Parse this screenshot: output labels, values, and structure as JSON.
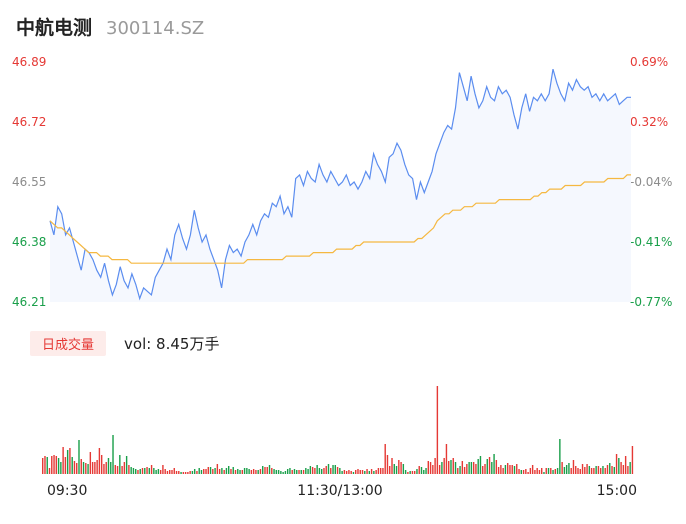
{
  "header": {
    "name": "中航电测",
    "code": "300114.SZ"
  },
  "volume": {
    "badge": "日成交量",
    "label": "vol: 8.45万手"
  },
  "colors": {
    "up": "#e53935",
    "down": "#1a9f4a",
    "flat": "#8c8c8c",
    "price_line": "#5b8def",
    "avg_line": "#f5b841"
  },
  "chart_data": [
    {
      "type": "line",
      "title": "",
      "ylim": [
        46.21,
        46.89
      ],
      "y_ticks_left": [
        "46.89",
        "46.72",
        "46.55",
        "46.38",
        "46.21"
      ],
      "y_ticks_right": [
        "0.69%",
        "0.32%",
        "-0.04%",
        "-0.41%",
        "-0.77%"
      ],
      "x_ticks": [
        "09:30",
        "11:30/13:00",
        "15:00"
      ],
      "series": [
        {
          "points": [
            46.44,
            46.4,
            46.48,
            46.46,
            46.4,
            46.42,
            46.38,
            46.34,
            46.3,
            46.36,
            46.35,
            46.33,
            46.3,
            46.28,
            46.32,
            46.27,
            46.23,
            46.26,
            46.31,
            46.27,
            46.25,
            46.29,
            46.26,
            46.22,
            46.25,
            46.24,
            46.23,
            46.28,
            46.3,
            46.32,
            46.36,
            46.33,
            46.4,
            46.43,
            46.39,
            46.36,
            46.4,
            46.47,
            46.42,
            46.38,
            46.4,
            46.36,
            46.33,
            46.3,
            46.25,
            46.33,
            46.37,
            46.35,
            46.36,
            46.34,
            46.38,
            46.4,
            46.43,
            46.4,
            46.44,
            46.46,
            46.45,
            46.49,
            46.48,
            46.51,
            46.46,
            46.48,
            46.45,
            46.56,
            46.57,
            46.54,
            46.58,
            46.56,
            46.55,
            46.6,
            46.57,
            46.55,
            46.58,
            46.56,
            46.54,
            46.55,
            46.57,
            46.54,
            46.55,
            46.53,
            46.55,
            46.58,
            46.56,
            46.63,
            46.6,
            46.58,
            46.55,
            46.62,
            46.63,
            46.66,
            46.64,
            46.6,
            46.57,
            46.56,
            46.5,
            46.55,
            46.52,
            46.55,
            46.58,
            46.63,
            46.66,
            46.69,
            46.71,
            46.7,
            46.76,
            46.86,
            46.82,
            46.78,
            46.85,
            46.8,
            46.76,
            46.78,
            46.82,
            46.79,
            46.78,
            46.82,
            46.8,
            46.81,
            46.79,
            46.74,
            46.7,
            46.76,
            46.8,
            46.75,
            46.79,
            46.78,
            46.8,
            46.78,
            46.8,
            46.87,
            46.83,
            46.8,
            46.78,
            46.83,
            46.81,
            46.84,
            46.82,
            46.81,
            46.82,
            46.79,
            46.8,
            46.78,
            46.8,
            46.78,
            46.79,
            46.8,
            46.77,
            46.78,
            46.79,
            46.79
          ]
        },
        {
          "points": [
            46.44,
            46.43,
            46.42,
            46.42,
            46.41,
            46.4,
            46.39,
            46.38,
            46.37,
            46.36,
            46.35,
            46.35,
            46.35,
            46.34,
            46.34,
            46.34,
            46.33,
            46.33,
            46.33,
            46.33,
            46.33,
            46.32,
            46.32,
            46.32,
            46.32,
            46.32,
            46.32,
            46.32,
            46.32,
            46.32,
            46.32,
            46.32,
            46.32,
            46.32,
            46.32,
            46.32,
            46.32,
            46.32,
            46.32,
            46.32,
            46.32,
            46.32,
            46.32,
            46.32,
            46.32,
            46.32,
            46.32,
            46.32,
            46.32,
            46.32,
            46.32,
            46.33,
            46.33,
            46.33,
            46.33,
            46.33,
            46.33,
            46.33,
            46.33,
            46.33,
            46.33,
            46.34,
            46.34,
            46.34,
            46.34,
            46.34,
            46.34,
            46.34,
            46.35,
            46.35,
            46.35,
            46.35,
            46.35,
            46.35,
            46.36,
            46.36,
            46.36,
            46.36,
            46.36,
            46.37,
            46.37,
            46.38,
            46.38,
            46.38,
            46.38,
            46.38,
            46.38,
            46.38,
            46.38,
            46.38,
            46.38,
            46.38,
            46.38,
            46.38,
            46.38,
            46.39,
            46.39,
            46.4,
            46.41,
            46.42,
            46.44,
            46.45,
            46.46,
            46.46,
            46.47,
            46.47,
            46.47,
            46.48,
            46.48,
            46.48,
            46.49,
            46.49,
            46.49,
            46.49,
            46.49,
            46.49,
            46.5,
            46.5,
            46.5,
            46.5,
            46.5,
            46.5,
            46.5,
            46.5,
            46.5,
            46.51,
            46.51,
            46.52,
            46.52,
            46.53,
            46.53,
            46.53,
            46.53,
            46.54,
            46.54,
            46.54,
            46.54,
            46.54,
            46.55,
            46.55,
            46.55,
            46.55,
            46.55,
            46.55,
            46.56,
            46.56,
            46.56,
            46.56,
            46.56,
            46.57,
            46.57
          ]
        }
      ]
    },
    {
      "type": "bar",
      "title": "",
      "values": [
        16,
        18,
        17,
        6,
        18,
        19,
        18,
        16,
        12,
        27,
        17,
        24,
        26,
        17,
        13,
        11,
        34,
        15,
        12,
        11,
        10,
        22,
        12,
        12,
        14,
        26,
        19,
        10,
        12,
        16,
        12,
        39,
        9,
        8,
        19,
        8,
        12,
        18,
        9,
        7,
        6,
        5,
        4,
        5,
        6,
        6,
        7,
        6,
        9,
        6,
        4,
        5,
        4,
        9,
        5,
        3,
        4,
        4,
        6,
        3,
        3,
        2,
        2,
        2,
        2,
        3,
        3,
        5,
        3,
        6,
        4,
        5,
        5,
        7,
        7,
        5,
        6,
        10,
        5,
        6,
        4,
        6,
        8,
        5,
        7,
        4,
        5,
        4,
        4,
        6,
        6,
        5,
        4,
        5,
        4,
        4,
        5,
        8,
        7,
        7,
        9,
        6,
        5,
        4,
        4,
        3,
        2,
        3,
        5,
        6,
        4,
        5,
        4,
        4,
        4,
        4,
        6,
        5,
        8,
        7,
        6,
        9,
        6,
        5,
        6,
        8,
        10,
        6,
        9,
        9,
        7,
        6,
        3,
        4,
        3,
        4,
        3,
        2,
        4,
        5,
        4,
        4,
        3,
        5,
        3,
        5,
        3,
        4,
        6,
        6,
        6,
        30,
        19,
        8,
        16,
        10,
        8,
        14,
        12,
        10,
        4,
        2,
        3,
        3,
        3,
        5,
        8,
        7,
        4,
        6,
        13,
        12,
        9,
        16,
        88,
        9,
        12,
        16,
        30,
        13,
        14,
        16,
        12,
        6,
        8,
        13,
        7,
        10,
        12,
        12,
        12,
        10,
        15,
        18,
        8,
        10,
        15,
        17,
        12,
        20,
        14,
        7,
        9,
        6,
        9,
        11,
        9,
        9,
        8,
        10,
        5,
        4,
        4,
        5,
        2,
        6,
        9,
        4,
        6,
        4,
        6,
        2,
        6,
        6,
        6,
        4,
        5,
        6,
        35,
        12,
        7,
        9,
        11,
        6,
        14,
        8,
        6,
        5,
        10,
        7,
        10,
        8,
        6,
        6,
        8,
        8,
        6,
        8,
        6,
        9,
        11,
        8,
        7,
        20,
        16,
        12,
        9,
        18,
        8,
        12,
        28
      ],
      "directions": [
        "u",
        "u",
        "d",
        "u",
        "u",
        "u",
        "u",
        "d",
        "d",
        "u",
        "u",
        "d",
        "u",
        "d",
        "u",
        "u",
        "d",
        "u",
        "d",
        "u",
        "d",
        "u",
        "u",
        "u",
        "u",
        "u",
        "u",
        "u",
        "u",
        "d",
        "d",
        "d",
        "u",
        "u",
        "d",
        "u",
        "u",
        "d",
        "u",
        "d",
        "d",
        "d",
        "u",
        "d",
        "u",
        "d",
        "u",
        "d",
        "u",
        "d",
        "d",
        "d",
        "u",
        "u",
        "u",
        "u",
        "u",
        "u",
        "u",
        "u",
        "u",
        "d",
        "u",
        "u",
        "u",
        "u",
        "d",
        "d",
        "u",
        "d",
        "d",
        "u",
        "u",
        "u",
        "d",
        "u",
        "d",
        "u",
        "u",
        "d",
        "u",
        "d",
        "d",
        "u",
        "d",
        "u",
        "d",
        "d",
        "u",
        "d",
        "d",
        "d",
        "u",
        "u",
        "u",
        "d",
        "u",
        "d",
        "u",
        "u",
        "d",
        "u",
        "d",
        "d",
        "d",
        "d",
        "d",
        "d",
        "d",
        "d",
        "u",
        "d",
        "d",
        "u",
        "d",
        "u",
        "d",
        "d",
        "d",
        "u",
        "u",
        "d",
        "d",
        "d",
        "u",
        "u",
        "d",
        "u",
        "d",
        "d",
        "u",
        "d",
        "d",
        "u",
        "u",
        "u",
        "u",
        "d",
        "u",
        "u",
        "u",
        "u",
        "d",
        "u",
        "d",
        "u",
        "d",
        "u",
        "u",
        "u",
        "u",
        "u",
        "u",
        "u",
        "u",
        "d",
        "d",
        "u",
        "u",
        "d",
        "d",
        "u",
        "d",
        "u",
        "u",
        "d",
        "u",
        "d",
        "d",
        "d",
        "u",
        "u",
        "u",
        "u",
        "u",
        "u",
        "d",
        "u",
        "u",
        "u",
        "d",
        "u",
        "d",
        "u",
        "d",
        "u",
        "u",
        "u",
        "d",
        "d",
        "u",
        "u",
        "d",
        "d",
        "u",
        "u",
        "d",
        "u",
        "d",
        "d",
        "u",
        "u",
        "u",
        "u",
        "d",
        "u",
        "u",
        "u",
        "d",
        "u",
        "u",
        "d",
        "u",
        "u",
        "u",
        "u",
        "u",
        "u",
        "u",
        "u",
        "u",
        "d",
        "u",
        "d",
        "u",
        "d",
        "u",
        "d",
        "d",
        "u",
        "d",
        "d",
        "d",
        "u",
        "u",
        "u",
        "u",
        "u",
        "u",
        "u",
        "u",
        "d",
        "u",
        "u",
        "d",
        "u",
        "u",
        "d",
        "u",
        "u",
        "d",
        "u",
        "d",
        "u",
        "d",
        "u",
        "u",
        "u",
        "u",
        "d",
        "u",
        "u",
        "u",
        "u",
        "u"
      ]
    }
  ]
}
